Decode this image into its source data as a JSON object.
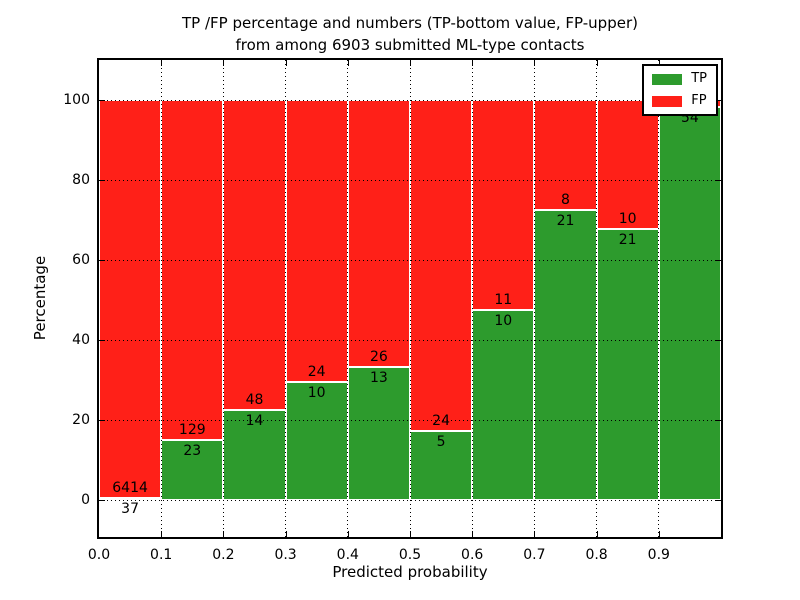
{
  "title": {
    "line1": "TP /FP percentage and numbers (TP-bottom value, FP-upper)",
    "line2": "from among 6903 submitted ML-type contacts"
  },
  "axes": {
    "ylabel": "Percentage",
    "xlabel": "Predicted probability",
    "y_ticks": [
      "0",
      "20",
      "40",
      "60",
      "80",
      "100"
    ],
    "y_tick_values": [
      0,
      20,
      40,
      60,
      80,
      100
    ],
    "x_ticks": [
      "0.0",
      "0.1",
      "0.2",
      "0.3",
      "0.4",
      "0.5",
      "0.6",
      "0.7",
      "0.8",
      "0.9"
    ]
  },
  "colors": {
    "tp": "#2d9b2d",
    "fp": "#ff2018",
    "grid": "#000000",
    "spine": "#000000"
  },
  "legend": {
    "items": [
      {
        "label": "TP",
        "color": "#2d9b2d"
      },
      {
        "label": "FP",
        "color": "#ff2018"
      }
    ]
  },
  "chart_data": {
    "type": "bar",
    "stacked": true,
    "normalized_percent": true,
    "title": "TP /FP percentage and numbers (TP-bottom value, FP-upper) from among 6903 submitted ML-type contacts",
    "xlabel": "Predicted probability",
    "ylabel": "Percentage",
    "xlim": [
      0.0,
      1.0
    ],
    "ylim": [
      -9.25,
      110
    ],
    "grid": true,
    "legend_position": "upper right",
    "total_contacts": 6903,
    "categories": [
      "0.0-0.1",
      "0.1-0.2",
      "0.2-0.3",
      "0.3-0.4",
      "0.4-0.5",
      "0.5-0.6",
      "0.6-0.7",
      "0.7-0.8",
      "0.8-0.9",
      "0.9-1.0"
    ],
    "bins": [
      {
        "range": "0.0-0.1",
        "tp": 37,
        "fp": 6414,
        "tp_pct": 0.6,
        "fp_label_visible": true,
        "tp_label_below_axis": true
      },
      {
        "range": "0.1-0.2",
        "tp": 23,
        "fp": 129,
        "tp_pct": 15.1,
        "fp_label_visible": true,
        "tp_label_below_axis": false
      },
      {
        "range": "0.2-0.3",
        "tp": 14,
        "fp": 48,
        "tp_pct": 22.6,
        "fp_label_visible": true,
        "tp_label_below_axis": false
      },
      {
        "range": "0.3-0.4",
        "tp": 10,
        "fp": 24,
        "tp_pct": 29.4,
        "fp_label_visible": true,
        "tp_label_below_axis": false
      },
      {
        "range": "0.4-0.5",
        "tp": 13,
        "fp": 26,
        "tp_pct": 33.3,
        "fp_label_visible": true,
        "tp_label_below_axis": false
      },
      {
        "range": "0.5-0.6",
        "tp": 5,
        "fp": 24,
        "tp_pct": 17.2,
        "fp_label_visible": true,
        "tp_label_below_axis": false
      },
      {
        "range": "0.6-0.7",
        "tp": 10,
        "fp": 11,
        "tp_pct": 47.6,
        "fp_label_visible": true,
        "tp_label_below_axis": false
      },
      {
        "range": "0.7-0.8",
        "tp": 21,
        "fp": 8,
        "tp_pct": 72.4,
        "fp_label_visible": true,
        "tp_label_below_axis": false
      },
      {
        "range": "0.8-0.9",
        "tp": 21,
        "fp": 10,
        "tp_pct": 67.7,
        "fp_label_visible": true,
        "tp_label_below_axis": false
      },
      {
        "range": "0.9-1.0",
        "tp": 54,
        "fp": 1,
        "tp_pct": 98.2,
        "fp_label_visible": false,
        "tp_label_below_axis": false
      }
    ]
  }
}
